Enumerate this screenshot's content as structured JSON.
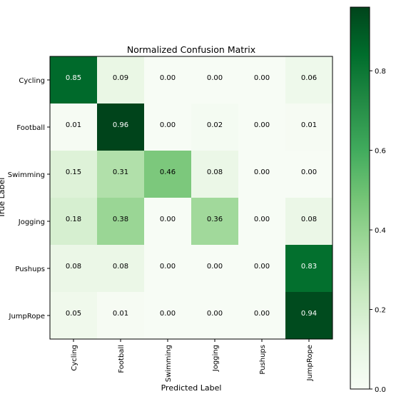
{
  "chart_data": {
    "type": "heatmap",
    "title": "Normalized Confusion Matrix",
    "xlabel": "Predicted Label",
    "ylabel": "True Label",
    "row_labels": [
      "Cycling",
      "Football",
      "Swimming",
      "Jogging",
      "Pushups",
      "JumpRope"
    ],
    "col_labels": [
      "Cycling",
      "Football",
      "Swimming",
      "Jogging",
      "Pushups",
      "JumpRope"
    ],
    "values": [
      [
        0.85,
        0.09,
        0.0,
        0.0,
        0.0,
        0.06
      ],
      [
        0.01,
        0.96,
        0.0,
        0.02,
        0.0,
        0.01
      ],
      [
        0.15,
        0.31,
        0.46,
        0.08,
        0.0,
        0.0
      ],
      [
        0.18,
        0.38,
        0.0,
        0.36,
        0.0,
        0.08
      ],
      [
        0.08,
        0.08,
        0.0,
        0.0,
        0.0,
        0.83
      ],
      [
        0.05,
        0.01,
        0.0,
        0.0,
        0.0,
        0.94
      ]
    ],
    "colormap": "Greens",
    "vmin": 0.0,
    "vmax": 0.96,
    "colorbar_ticks": [
      0.0,
      0.2,
      0.4,
      0.6,
      0.8
    ],
    "colorbar_tick_labels": [
      "0.0",
      "0.2",
      "0.4",
      "0.6",
      "0.8"
    ],
    "text_threshold": 0.48
  }
}
